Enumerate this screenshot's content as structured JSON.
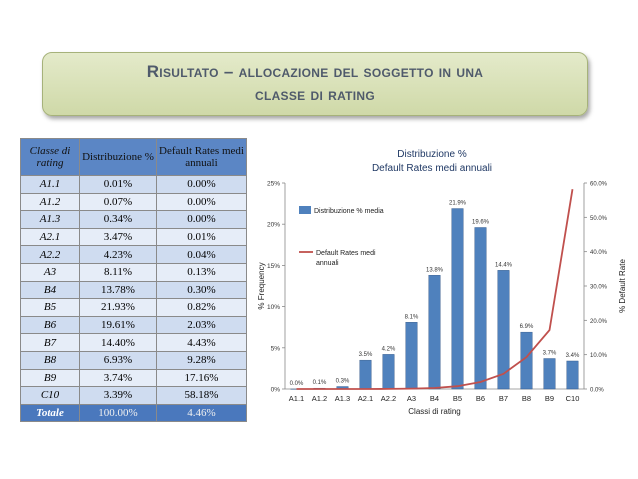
{
  "slide": {
    "title_line1": "Risultato – allocazione del soggetto in una",
    "title_line2": "classe di rating"
  },
  "table": {
    "headers": [
      "Classe di rating",
      "Distribuzione %",
      "Default Rates medi annuali"
    ],
    "rows": [
      [
        "A1.1",
        "0.01%",
        "0.00%"
      ],
      [
        "A1.2",
        "0.07%",
        "0.00%"
      ],
      [
        "A1.3",
        "0.34%",
        "0.00%"
      ],
      [
        "A2.1",
        "3.47%",
        "0.01%"
      ],
      [
        "A2.2",
        "4.23%",
        "0.04%"
      ],
      [
        "A3",
        "8.11%",
        "0.13%"
      ],
      [
        "B4",
        "13.78%",
        "0.30%"
      ],
      [
        "B5",
        "21.93%",
        "0.82%"
      ],
      [
        "B6",
        "19.61%",
        "2.03%"
      ],
      [
        "B7",
        "14.40%",
        "4.43%"
      ],
      [
        "B8",
        "6.93%",
        "9.28%"
      ],
      [
        "B9",
        "3.74%",
        "17.16%"
      ],
      [
        "C10",
        "3.39%",
        "58.18%"
      ]
    ],
    "total": [
      "Totale",
      "100.00%",
      "4.46%"
    ]
  },
  "chart_data": {
    "type": "bar",
    "title_line1": "Distribuzione %",
    "title_line2": "Default Rates medi annuali",
    "categories": [
      "A1.1",
      "A1.2",
      "A1.3",
      "A2.1",
      "A2.2",
      "A3",
      "B4",
      "B5",
      "B6",
      "B7",
      "B8",
      "B9",
      "C10"
    ],
    "series": [
      {
        "name": "Distribuzione % media",
        "type": "bar",
        "axis": "left",
        "values": [
          0.0,
          0.1,
          0.3,
          3.5,
          4.2,
          8.1,
          13.8,
          21.9,
          19.6,
          14.4,
          6.9,
          3.7,
          3.4
        ],
        "labels": [
          "0.0%",
          "0.1%",
          "0.3%",
          "3.5%",
          "4.2%",
          "8.1%",
          "13.8%",
          "21.9%",
          "19.6%",
          "14.4%",
          "6.9%",
          "3.7%",
          "3.4%"
        ],
        "color": "#4f81bd"
      },
      {
        "name": "Default Rates medi annuali",
        "type": "line",
        "axis": "right",
        "values": [
          0.0,
          0.0,
          0.0,
          0.01,
          0.04,
          0.13,
          0.3,
          0.82,
          2.03,
          4.43,
          9.28,
          17.16,
          58.18
        ],
        "color": "#c0504d"
      }
    ],
    "xlabel": "Classi di rating",
    "ylabel_left": "% Frequency",
    "ylabel_right": "% Default Rate",
    "ylim_left": [
      0,
      25
    ],
    "ylim_right": [
      0,
      60
    ],
    "yticks_left": [
      "0%",
      "5%",
      "10%",
      "15%",
      "20%",
      "25%"
    ],
    "yticks_right": [
      "0.0%",
      "10.0%",
      "20.0%",
      "30.0%",
      "40.0%",
      "50.0%",
      "60.0%"
    ],
    "grid": false,
    "legend_placement": "top-left"
  }
}
